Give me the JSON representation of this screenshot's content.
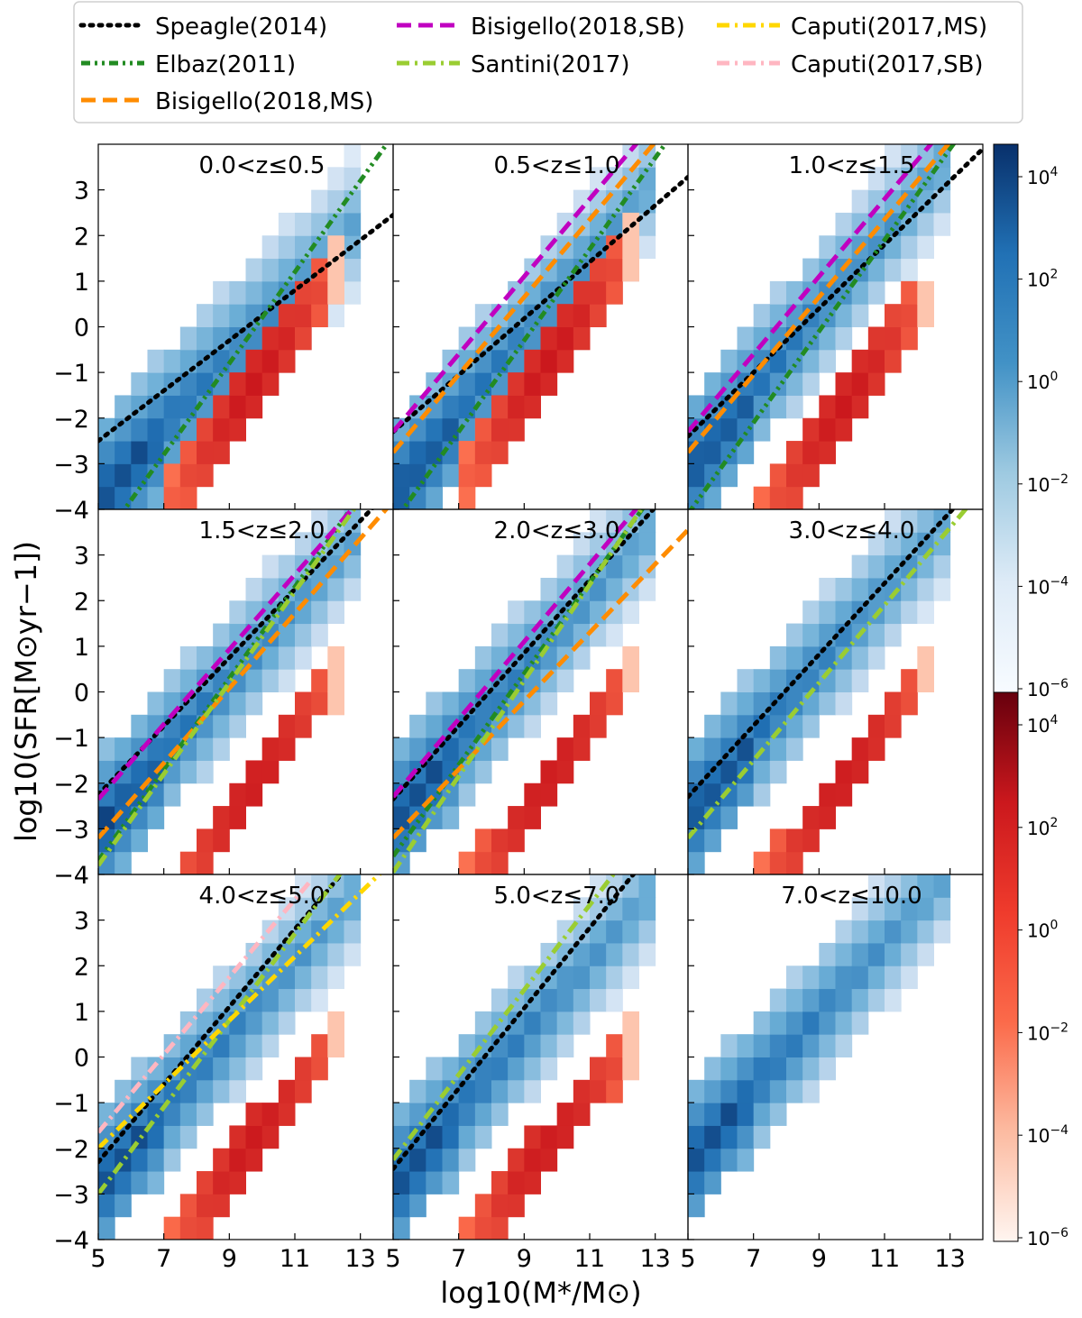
{
  "chart_data": {
    "type": "heatmap",
    "title": "",
    "xlabel": "log10(M*/M⊙)",
    "ylabel": "log10(SFR[M⊙yr−1])",
    "xlim": [
      5,
      14
    ],
    "ylim": [
      -4,
      4
    ],
    "x_ticks": [
      "5",
      "7",
      "9",
      "11",
      "13"
    ],
    "y_ticks": [
      "−4",
      "−3",
      "−2",
      "−1",
      "0",
      "1",
      "2",
      "3"
    ],
    "legend": {
      "placement": "top",
      "entries": [
        {
          "label": "Speagle(2014)",
          "color": "#000000",
          "style": "dotted"
        },
        {
          "label": "Elbaz(2011)",
          "color": "#228b22",
          "style": "dashdotdot"
        },
        {
          "label": "Bisigello(2018,MS)",
          "color": "#ff8c00",
          "style": "dashed"
        },
        {
          "label": "Bisigello(2018,SB)",
          "color": "#c000c0",
          "style": "dashed"
        },
        {
          "label": "Santini(2017)",
          "color": "#9acd32",
          "style": "dashdot"
        },
        {
          "label": "Caputi(2017,MS)",
          "color": "#ffd700",
          "style": "dashdot"
        },
        {
          "label": "Caputi(2017,SB)",
          "color": "#ffb6c1",
          "style": "dashdot"
        }
      ]
    },
    "colorbars": [
      {
        "name": "Blues",
        "scale": "log",
        "range": [
          1e-06,
          10000.0
        ],
        "tick_labels": [
          "10^-6",
          "10^-4",
          "10^-2",
          "10^0",
          "10^2",
          "10^4"
        ]
      },
      {
        "name": "Reds",
        "scale": "log",
        "range": [
          1e-06,
          10000.0
        ],
        "tick_labels": [
          "10^-6",
          "10^-4",
          "10^-2",
          "10^0",
          "10^2",
          "10^4"
        ]
      }
    ],
    "panels": [
      {
        "label": "0.0<z≤0.5",
        "main_sequence": {
          "slope": 0.75,
          "intercept": -7.4,
          "width": 3.2
        },
        "passive": {
          "slope": 1.0,
          "intercept": -11.0
        },
        "relations": [
          {
            "name": "Speagle(2014)",
            "slope": 0.55,
            "intercept": -5.25,
            "x_range": [
              5,
              14
            ]
          },
          {
            "name": "Elbaz(2011)",
            "slope": 1.0,
            "intercept": -9.8,
            "x_range": [
              5,
              14
            ]
          }
        ]
      },
      {
        "label": "0.5<z≤1.0",
        "main_sequence": {
          "slope": 0.85,
          "intercept": -7.8,
          "width": 3.0
        },
        "passive": {
          "slope": 1.0,
          "intercept": -10.5
        },
        "relations": [
          {
            "name": "Speagle(2014)",
            "slope": 0.62,
            "intercept": -5.4,
            "x_range": [
              5,
              14
            ]
          },
          {
            "name": "Elbaz(2011)",
            "slope": 1.0,
            "intercept": -9.3,
            "x_range": [
              5,
              14
            ]
          },
          {
            "name": "Bisigello(2018,MS)",
            "slope": 0.85,
            "intercept": -7.0,
            "x_range": [
              5,
              14
            ]
          },
          {
            "name": "Bisigello(2018,SB)",
            "slope": 0.85,
            "intercept": -6.55,
            "x_range": [
              5,
              14
            ]
          }
        ]
      },
      {
        "label": "1.0<z≤1.5",
        "main_sequence": {
          "slope": 0.85,
          "intercept": -7.3,
          "width": 3.0
        },
        "passive": {
          "slope": 0.95,
          "intercept": -11.0
        },
        "relations": [
          {
            "name": "Speagle(2014)",
            "slope": 0.7,
            "intercept": -5.9,
            "x_range": [
              5,
              14
            ]
          },
          {
            "name": "Elbaz(2011)",
            "slope": 1.0,
            "intercept": -9.1,
            "x_range": [
              5,
              14
            ]
          },
          {
            "name": "Bisigello(2018,MS)",
            "slope": 0.85,
            "intercept": -7.0,
            "x_range": [
              5,
              14
            ]
          },
          {
            "name": "Bisigello(2018,SB)",
            "slope": 0.85,
            "intercept": -6.55,
            "x_range": [
              5,
              14
            ]
          }
        ]
      },
      {
        "label": "1.5<z≤2.0",
        "main_sequence": {
          "slope": 0.8,
          "intercept": -6.9,
          "width": 3.0
        },
        "passive": {
          "slope": 0.95,
          "intercept": -11.3
        },
        "relations": [
          {
            "name": "Speagle(2014)",
            "slope": 0.75,
            "intercept": -6.0,
            "x_range": [
              5,
              14
            ]
          },
          {
            "name": "Elbaz(2011)",
            "slope": 1.0,
            "intercept": -8.7,
            "x_range": [
              5,
              14
            ]
          },
          {
            "name": "Bisigello(2018,MS)",
            "slope": 0.82,
            "intercept": -7.3,
            "x_range": [
              5,
              14
            ]
          },
          {
            "name": "Bisigello(2018,SB)",
            "slope": 0.82,
            "intercept": -6.45,
            "x_range": [
              5,
              14
            ]
          },
          {
            "name": "Santini(2017)",
            "slope": 1.0,
            "intercept": -8.8,
            "x_range": [
              5,
              14
            ]
          }
        ]
      },
      {
        "label": "2.0<z≤3.0",
        "main_sequence": {
          "slope": 0.8,
          "intercept": -6.7,
          "width": 3.0
        },
        "passive": {
          "slope": 0.95,
          "intercept": -11.2
        },
        "relations": [
          {
            "name": "Speagle(2014)",
            "slope": 0.8,
            "intercept": -6.35,
            "x_range": [
              5,
              14
            ]
          },
          {
            "name": "Elbaz(2011)",
            "slope": 1.0,
            "intercept": -8.6,
            "x_range": [
              5,
              14
            ]
          },
          {
            "name": "Bisigello(2018,MS)",
            "slope": 0.75,
            "intercept": -6.95,
            "x_range": [
              5,
              14
            ]
          },
          {
            "name": "Bisigello(2018,SB)",
            "slope": 0.85,
            "intercept": -6.55,
            "x_range": [
              5,
              14
            ]
          },
          {
            "name": "Santini(2017)",
            "slope": 1.05,
            "intercept": -9.2,
            "x_range": [
              5,
              14
            ]
          }
        ]
      },
      {
        "label": "3.0<z≤4.0",
        "main_sequence": {
          "slope": 0.8,
          "intercept": -6.6,
          "width": 3.0
        },
        "passive": {
          "slope": 0.95,
          "intercept": -11.2
        },
        "relations": [
          {
            "name": "Speagle(2014)",
            "slope": 0.78,
            "intercept": -6.2,
            "x_range": [
              5,
              14
            ]
          },
          {
            "name": "Santini(2017)",
            "slope": 0.85,
            "intercept": -7.45,
            "x_range": [
              5,
              14
            ]
          }
        ]
      },
      {
        "label": "4.0<z≤5.0",
        "main_sequence": {
          "slope": 0.8,
          "intercept": -6.7,
          "width": 3.0
        },
        "passive": {
          "slope": 0.9,
          "intercept": -10.6
        },
        "relations": [
          {
            "name": "Speagle(2014)",
            "slope": 0.85,
            "intercept": -6.55,
            "x_range": [
              5,
              14
            ]
          },
          {
            "name": "Santini(2017)",
            "slope": 0.95,
            "intercept": -7.75,
            "x_range": [
              5,
              14
            ]
          },
          {
            "name": "Caputi(2017,MS)",
            "slope": 0.7,
            "intercept": -5.5,
            "x_range": [
              5,
              14
            ]
          },
          {
            "name": "Caputi(2017,SB)",
            "slope": 0.85,
            "intercept": -5.9,
            "x_range": [
              5,
              11.5
            ]
          }
        ]
      },
      {
        "label": "5.0<z≤7.0",
        "main_sequence": {
          "slope": 0.8,
          "intercept": -6.7,
          "width": 3.0
        },
        "passive": {
          "slope": 0.85,
          "intercept": -10.2
        },
        "relations": [
          {
            "name": "Speagle(2014)",
            "slope": 0.88,
            "intercept": -6.85,
            "x_range": [
              5,
              14
            ]
          },
          {
            "name": "Santini(2017)",
            "slope": 0.93,
            "intercept": -6.9,
            "x_range": [
              5,
              14
            ]
          }
        ]
      },
      {
        "label": "7.0<z≤10.0",
        "main_sequence": {
          "slope": 0.78,
          "intercept": -6.1,
          "width": 3.0
        },
        "passive": null,
        "relations": []
      }
    ]
  }
}
